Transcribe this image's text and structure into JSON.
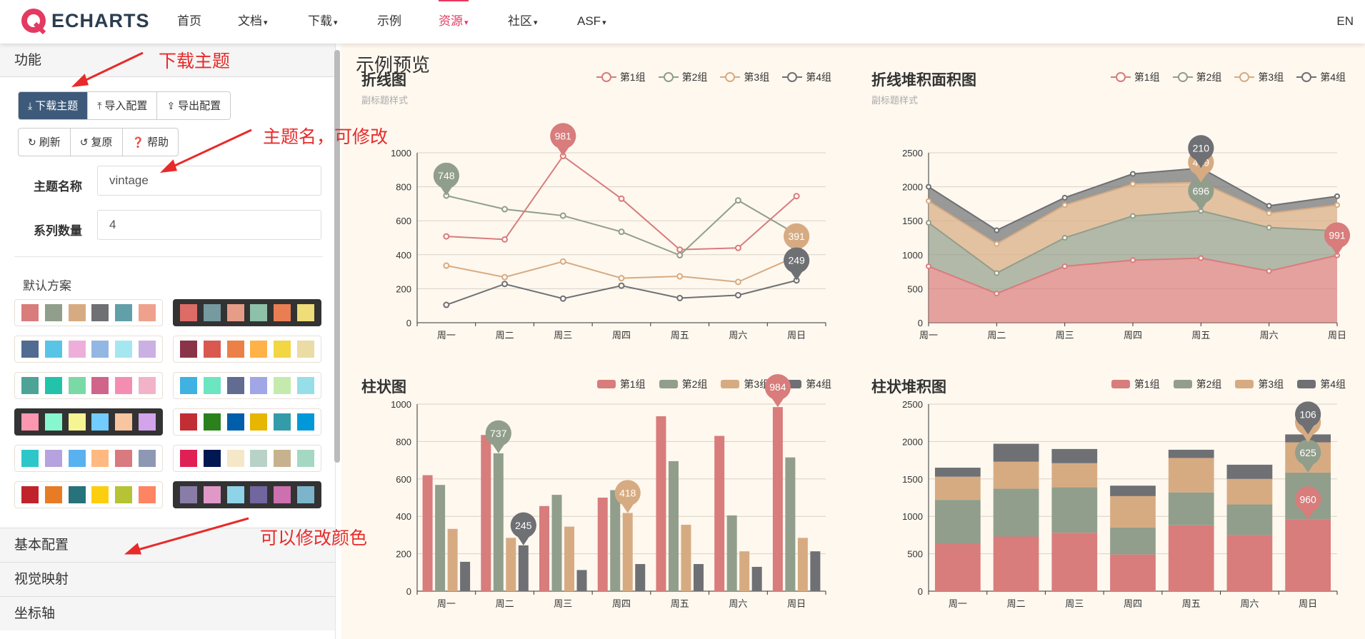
{
  "nav": {
    "logo_text": "ECHARTS",
    "items": [
      {
        "label": "首页",
        "caret": false,
        "active": false
      },
      {
        "label": "文档",
        "caret": true,
        "active": false
      },
      {
        "label": "下载",
        "caret": true,
        "active": false
      },
      {
        "label": "示例",
        "caret": false,
        "active": false
      },
      {
        "label": "资源",
        "caret": true,
        "active": true
      },
      {
        "label": "社区",
        "caret": true,
        "active": false
      },
      {
        "label": "ASF",
        "caret": true,
        "active": false
      }
    ],
    "lang": "EN"
  },
  "sidebar": {
    "panel_title": "功能",
    "buttons_row1": [
      "下载主题",
      "导入配置",
      "导出配置"
    ],
    "buttons_row2": [
      "刷新",
      "复原",
      "帮助"
    ],
    "theme_name_label": "主题名称",
    "theme_name_value": "vintage",
    "series_count_label": "系列数量",
    "series_count_value": "4",
    "default_schemes_title": "默认方案",
    "schemes": [
      {
        "dark": false,
        "colors": [
          "#d87c7c",
          "#919e8b",
          "#d7ab82",
          "#6e7074",
          "#61a0a8",
          "#efa18d"
        ]
      },
      {
        "dark": true,
        "colors": [
          "#dd6b66",
          "#759aa0",
          "#e69d87",
          "#8dc1a9",
          "#ea7e53",
          "#eedd78"
        ]
      },
      {
        "dark": false,
        "colors": [
          "#516b91",
          "#59c4e6",
          "#edafda",
          "#93b7e3",
          "#a5e7f0",
          "#cbb0e3"
        ]
      },
      {
        "dark": false,
        "colors": [
          "#893448",
          "#d95850",
          "#eb8146",
          "#ffb248",
          "#f2d643",
          "#ebdba4"
        ]
      },
      {
        "dark": false,
        "colors": [
          "#4ea397",
          "#22c3aa",
          "#7bd9a5",
          "#d0648a",
          "#f58db2",
          "#f2b3c9"
        ]
      },
      {
        "dark": false,
        "colors": [
          "#3fb1e3",
          "#6be6c1",
          "#626c91",
          "#a0a7e6",
          "#c4ebad",
          "#96dee8"
        ]
      },
      {
        "dark": true,
        "colors": [
          "#fc97af",
          "#87f7cf",
          "#f7f494",
          "#72ccff",
          "#f7c5a0",
          "#d4a4eb"
        ]
      },
      {
        "dark": false,
        "colors": [
          "#c12e34",
          "#2b821d",
          "#005eaa",
          "#e6b600",
          "#339ca8",
          "#0098d9"
        ]
      },
      {
        "dark": false,
        "colors": [
          "#2ec7c9",
          "#b6a2de",
          "#5ab1ef",
          "#ffb980",
          "#d87a80",
          "#8d98b3"
        ]
      },
      {
        "dark": false,
        "colors": [
          "#e01f54",
          "#001852",
          "#f5e8c8",
          "#b8d2c7",
          "#c6b38e",
          "#a4d8c2"
        ]
      },
      {
        "dark": false,
        "colors": [
          "#c1232b",
          "#e87c25",
          "#27727b",
          "#fcce10",
          "#b5c334",
          "#fe8463"
        ]
      },
      {
        "dark": true,
        "colors": [
          "#8a7ca8",
          "#e098c7",
          "#8fd3e8",
          "#71669e",
          "#cc70af",
          "#7cb4cc"
        ]
      }
    ],
    "collapsed": [
      "基本配置",
      "视觉映射",
      "坐标轴"
    ]
  },
  "annotations": {
    "download_theme": "下载主题",
    "theme_name": "主题名，可修改",
    "modify_colors": "可以修改颜色"
  },
  "preview": {
    "title": "示例预览",
    "legend": [
      "第1组",
      "第2组",
      "第3组",
      "第4组"
    ],
    "colors": [
      "#d87c7c",
      "#919e8b",
      "#d7ab82",
      "#6e7074"
    ],
    "tooltip": {
      "title": "周一",
      "rows": [
        {
          "name": "第1组",
          "value": 508
        },
        {
          "name": "第2组",
          "value": 748
        },
        {
          "name": "第3组",
          "value": 336
        },
        {
          "name": "第4组",
          "value": 105
        }
      ]
    }
  },
  "chart_data": [
    {
      "type": "line",
      "title": "折线图",
      "subtitle": "副标题样式",
      "categories": [
        "周一",
        "周二",
        "周三",
        "周四",
        "周五",
        "周六",
        "周日"
      ],
      "ylim": [
        0,
        1000
      ],
      "yticks": [
        0,
        200,
        400,
        600,
        800,
        1000
      ],
      "series": [
        {
          "name": "第1组",
          "values": [
            508,
            490,
            981,
            730,
            430,
            440,
            745
          ]
        },
        {
          "name": "第2组",
          "values": [
            748,
            668,
            630,
            535,
            397,
            720,
            520
          ]
        },
        {
          "name": "第3组",
          "values": [
            336,
            268,
            360,
            262,
            273,
            240,
            391
          ]
        },
        {
          "name": "第4组",
          "values": [
            105,
            228,
            142,
            218,
            145,
            162,
            249
          ]
        }
      ],
      "markers": [
        {
          "series": 0,
          "index": 2,
          "label": "981"
        },
        {
          "series": 1,
          "index": 0,
          "label": "748"
        },
        {
          "series": 2,
          "index": 6,
          "label": "391"
        },
        {
          "series": 3,
          "index": 6,
          "label": "249"
        }
      ]
    },
    {
      "type": "area",
      "stacked": true,
      "title": "折线堆积面积图",
      "subtitle": "副标题样式",
      "categories": [
        "周一",
        "周二",
        "周三",
        "周四",
        "周五",
        "周六",
        "周日"
      ],
      "ylim": [
        0,
        2500
      ],
      "yticks": [
        0,
        500,
        1000,
        1500,
        2000,
        2500
      ],
      "series": [
        {
          "name": "第1组",
          "values": [
            830,
            430,
            830,
            920,
            950,
            760,
            991
          ]
        },
        {
          "name": "第2组",
          "values": [
            640,
            300,
            420,
            650,
            696,
            640,
            360
          ]
        },
        {
          "name": "第3组",
          "values": [
            320,
            430,
            480,
            470,
            419,
            210,
            380
          ]
        },
        {
          "name": "第4组",
          "values": [
            210,
            200,
            110,
            150,
            210,
            110,
            130
          ]
        }
      ],
      "markers": [
        {
          "series": 0,
          "index": 6,
          "label": "991"
        },
        {
          "series": 1,
          "index": 4,
          "label": "696"
        },
        {
          "series": 2,
          "index": 4,
          "label": "419"
        },
        {
          "series": 3,
          "index": 4,
          "label": "210"
        }
      ]
    },
    {
      "type": "bar",
      "title": "柱状图",
      "categories": [
        "周一",
        "周二",
        "周三",
        "周四",
        "周五",
        "周六",
        "周日"
      ],
      "ylim": [
        0,
        1000
      ],
      "yticks": [
        0,
        200,
        400,
        600,
        800,
        1000
      ],
      "series": [
        {
          "name": "第1组",
          "values": [
            620,
            835,
            455,
            500,
            935,
            830,
            984
          ]
        },
        {
          "name": "第2组",
          "values": [
            568,
            737,
            515,
            540,
            695,
            405,
            715
          ]
        },
        {
          "name": "第3组",
          "values": [
            333,
            285,
            345,
            418,
            355,
            213,
            285
          ]
        },
        {
          "name": "第4组",
          "values": [
            157,
            245,
            113,
            145,
            145,
            130,
            213
          ]
        }
      ],
      "markers": [
        {
          "series": 0,
          "index": 6,
          "label": "984"
        },
        {
          "series": 1,
          "index": 1,
          "label": "737"
        },
        {
          "series": 2,
          "index": 3,
          "label": "418"
        },
        {
          "series": 3,
          "index": 1,
          "label": "245"
        }
      ]
    },
    {
      "type": "bar",
      "stacked": true,
      "title": "柱状堆积图",
      "categories": [
        "周一",
        "周二",
        "周三",
        "周四",
        "周五",
        "周六",
        "周日"
      ],
      "ylim": [
        0,
        2500
      ],
      "yticks": [
        0,
        500,
        1000,
        1500,
        2000,
        2500
      ],
      "series": [
        {
          "name": "第1组",
          "values": [
            630,
            730,
            780,
            490,
            880,
            750,
            960
          ]
        },
        {
          "name": "第2组",
          "values": [
            590,
            640,
            610,
            360,
            440,
            410,
            625
          ]
        },
        {
          "name": "第3组",
          "values": [
            310,
            360,
            320,
            420,
            460,
            340,
            404
          ]
        },
        {
          "name": "第4组",
          "values": [
            120,
            240,
            190,
            140,
            110,
            190,
            106
          ]
        }
      ],
      "markers": [
        {
          "series": 0,
          "index": 6,
          "label": "960"
        },
        {
          "series": 1,
          "index": 6,
          "label": "625"
        },
        {
          "series": 2,
          "index": 6,
          "label": "404"
        },
        {
          "series": 3,
          "index": 6,
          "label": "106"
        }
      ]
    }
  ]
}
